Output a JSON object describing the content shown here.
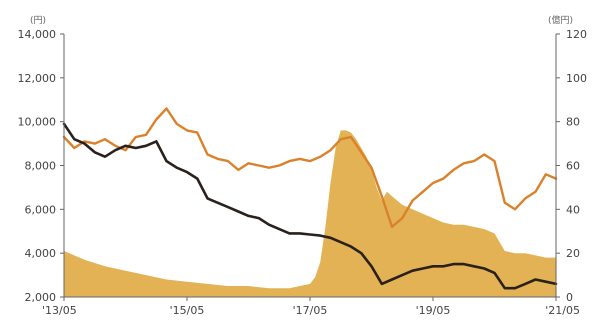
{
  "chart_data": {
    "type": "line",
    "x_ticks": [
      "'13/05",
      "'15/05",
      "'17/05",
      "'19/05",
      "'21/05"
    ],
    "y_left": {
      "unit": "(円)",
      "ticks": [
        "14,000",
        "12,000",
        "10,000",
        "8,000",
        "6,000",
        "4,000",
        "2,000"
      ],
      "range": [
        2000,
        14000
      ]
    },
    "y_right": {
      "unit": "(億円)",
      "ticks": [
        "120",
        "100",
        "80",
        "60",
        "40",
        "20",
        "0"
      ],
      "range": [
        0,
        120
      ]
    },
    "grid": false,
    "legend": "none",
    "colors": {
      "orange_line": "#d9822b",
      "black_line": "#2a211c",
      "area": "#e3b255",
      "axis": "#666666"
    },
    "series": [
      {
        "axis": "left",
        "style": "line",
        "color": "orange_line",
        "x": [
          "2013/05",
          "2013/07",
          "2013/09",
          "2013/11",
          "2014/01",
          "2014/03",
          "2014/05",
          "2014/07",
          "2014/09",
          "2014/11",
          "2015/01",
          "2015/03",
          "2015/05",
          "2015/07",
          "2015/09",
          "2015/11",
          "2016/01",
          "2016/03",
          "2016/05",
          "2016/07",
          "2016/09",
          "2016/11",
          "2017/01",
          "2017/03",
          "2017/05",
          "2017/07",
          "2017/09",
          "2017/11",
          "2018/01",
          "2018/03",
          "2018/05",
          "2018/07",
          "2018/09",
          "2018/11",
          "2019/01",
          "2019/03",
          "2019/05",
          "2019/07",
          "2019/09",
          "2019/11",
          "2020/01",
          "2020/03",
          "2020/05",
          "2020/07",
          "2020/09",
          "2020/11",
          "2021/01",
          "2021/03",
          "2021/05"
        ],
        "y": [
          9300,
          8800,
          9100,
          9000,
          9200,
          8900,
          8700,
          9300,
          9400,
          10100,
          10600,
          9900,
          9600,
          9500,
          8500,
          8300,
          8200,
          7800,
          8100,
          8000,
          7900,
          8000,
          8200,
          8300,
          8200,
          8400,
          8700,
          9200,
          9300,
          8600,
          7900,
          6600,
          5200,
          5600,
          6400,
          6800,
          7200,
          7400,
          7800,
          8100,
          8200,
          8500,
          8200,
          6300,
          6000,
          6500,
          6800,
          7600,
          7400
        ]
      },
      {
        "axis": "left",
        "style": "line",
        "color": "black_line",
        "x": [
          "2013/05",
          "2013/07",
          "2013/09",
          "2013/11",
          "2014/01",
          "2014/03",
          "2014/05",
          "2014/07",
          "2014/09",
          "2014/11",
          "2015/01",
          "2015/03",
          "2015/05",
          "2015/07",
          "2015/09",
          "2015/11",
          "2016/01",
          "2016/03",
          "2016/05",
          "2016/07",
          "2016/09",
          "2016/11",
          "2017/01",
          "2017/03",
          "2017/05",
          "2017/07",
          "2017/09",
          "2017/11",
          "2018/01",
          "2018/03",
          "2018/05",
          "2018/07",
          "2018/09",
          "2018/11",
          "2019/01",
          "2019/03",
          "2019/05",
          "2019/07",
          "2019/09",
          "2019/11",
          "2020/01",
          "2020/03",
          "2020/05",
          "2020/07",
          "2020/09",
          "2020/11",
          "2021/01",
          "2021/03",
          "2021/05"
        ],
        "y": [
          9900,
          9200,
          9000,
          8600,
          8400,
          8700,
          8900,
          8800,
          8900,
          9100,
          8200,
          7900,
          7700,
          7400,
          6500,
          6300,
          6100,
          5900,
          5700,
          5600,
          5300,
          5100,
          4900,
          4900,
          4850,
          4800,
          4700,
          4500,
          4300,
          4000,
          3400,
          2600,
          2800,
          3000,
          3200,
          3300,
          3400,
          3400,
          3500,
          3500,
          3400,
          3300,
          3100,
          2400,
          2400,
          2600,
          2800,
          2700,
          2600
        ]
      },
      {
        "axis": "right",
        "style": "area",
        "color": "area",
        "x": [
          "2013/05",
          "2013/09",
          "2014/01",
          "2014/05",
          "2014/09",
          "2015/01",
          "2015/05",
          "2015/09",
          "2016/01",
          "2016/05",
          "2016/09",
          "2017/01",
          "2017/03",
          "2017/05",
          "2017/06",
          "2017/07",
          "2017/08",
          "2017/09",
          "2017/10",
          "2017/11",
          "2017/12",
          "2018/01",
          "2018/02",
          "2018/03",
          "2018/04",
          "2018/05",
          "2018/06",
          "2018/07",
          "2018/08",
          "2018/09",
          "2018/11",
          "2019/01",
          "2019/03",
          "2019/05",
          "2019/07",
          "2019/09",
          "2019/11",
          "2020/01",
          "2020/03",
          "2020/05",
          "2020/07",
          "2020/09",
          "2020/11",
          "2021/01",
          "2021/03",
          "2021/05"
        ],
        "y": [
          21,
          17,
          14,
          12,
          10,
          8,
          7,
          6,
          5,
          5,
          4,
          4,
          5,
          6,
          9,
          16,
          32,
          52,
          68,
          76,
          76,
          75,
          72,
          68,
          64,
          58,
          50,
          44,
          48,
          46,
          42,
          40,
          38,
          36,
          34,
          33,
          33,
          32,
          31,
          29,
          21,
          20,
          20,
          19,
          18,
          18
        ]
      }
    ]
  }
}
